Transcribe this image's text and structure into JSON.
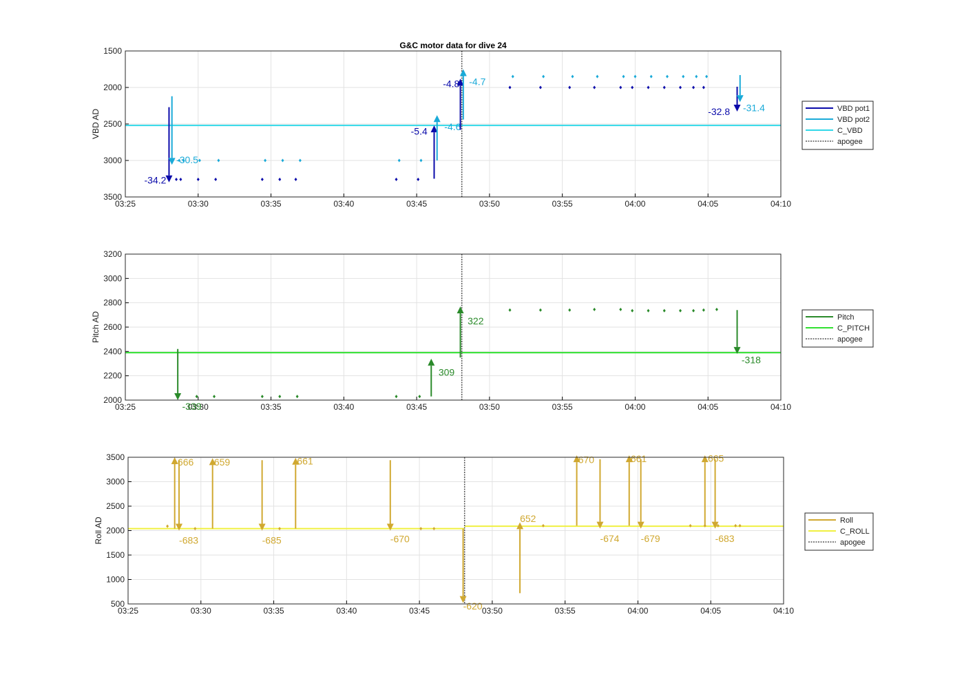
{
  "title": "G&C motor data for dive 24",
  "colors": {
    "vbd_pot1": "#0a0aaa",
    "vbd_pot2": "#1aaad8",
    "c_vbd": "#30d8e8",
    "pitch": "#2a8a2a",
    "c_pitch": "#30e030",
    "roll": "#d0a830",
    "c_roll": "#f0f040",
    "apogee": "#555555",
    "grid": "#e2e2e2"
  },
  "x_ticks": [
    "03:25",
    "03:30",
    "03:35",
    "03:40",
    "03:45",
    "03:50",
    "03:55",
    "04:00",
    "04:05",
    "04:10"
  ],
  "chart_data": [
    {
      "type": "line",
      "ylabel": "VBD AD",
      "xlim": [
        0,
        45
      ],
      "ylim": [
        3500,
        1500
      ],
      "y_reversed": true,
      "yticks": [
        1500,
        2000,
        2500,
        3000,
        3500
      ],
      "legend": [
        "VBD pot1",
        "VBD pot2",
        "C_VBD",
        "apogee"
      ],
      "hlines": [
        {
          "y": 2520,
          "color_key": "c_vbd"
        }
      ],
      "apogee_x": 23.1,
      "series": [
        {
          "name": "VBD pot1",
          "color_key": "vbd_pot1",
          "x": [
            3.5,
            3.8,
            5.0,
            6.2,
            9.4,
            10.6,
            11.7,
            18.6,
            20.1,
            26.4,
            28.5,
            30.5,
            32.2,
            34.0,
            34.8,
            35.9,
            37.0,
            38.1,
            39.0,
            39.7
          ],
          "y": [
            3260,
            3260,
            3260,
            3260,
            3260,
            3260,
            3260,
            3260,
            3260,
            2000,
            2000,
            2000,
            2000,
            2000,
            2000,
            2000,
            2000,
            2000,
            2000,
            2000
          ]
        },
        {
          "name": "VBD pot2",
          "color_key": "vbd_pot2",
          "x": [
            3.7,
            4.0,
            5.1,
            6.4,
            9.6,
            10.8,
            12.0,
            18.8,
            20.3,
            26.6,
            28.7,
            30.7,
            32.4,
            34.2,
            35.0,
            36.1,
            37.2,
            38.3,
            39.2,
            39.9
          ],
          "y": [
            3000,
            3000,
            3000,
            3000,
            3000,
            3000,
            3000,
            3000,
            3000,
            1850,
            1850,
            1850,
            1850,
            1850,
            1850,
            1850,
            1850,
            1850,
            1850,
            1850
          ]
        }
      ],
      "arrows": [
        {
          "x": 3.0,
          "from": 2270,
          "to": 3300,
          "label": "-34.2",
          "color_key": "vbd_pot1",
          "lx": 1.3,
          "ly": 3270
        },
        {
          "x": 3.2,
          "from": 2120,
          "to": 3060,
          "label": "-30.5",
          "color_key": "vbd_pot2",
          "lx": 3.5,
          "ly": 2990
        },
        {
          "x": 21.2,
          "from": 3250,
          "to": 2520,
          "label": "-5.4",
          "color_key": "vbd_pot1",
          "lx": 19.6,
          "ly": 2600
        },
        {
          "x": 21.4,
          "from": 3000,
          "to": 2380,
          "label": "-4.6",
          "color_key": "vbd_pot2",
          "lx": 21.9,
          "ly": 2540
        },
        {
          "x": 23.0,
          "from": 2580,
          "to": 1880,
          "label": "-4.8",
          "color_key": "vbd_pot1",
          "lx": 21.8,
          "ly": 1950
        },
        {
          "x": 23.2,
          "from": 2440,
          "to": 1750,
          "label": "-4.7",
          "color_key": "vbd_pot2",
          "lx": 23.6,
          "ly": 1920
        },
        {
          "x": 42.0,
          "from": 1990,
          "to": 2330,
          "label": "-32.8",
          "color_key": "vbd_pot1",
          "lx": 40.0,
          "ly": 2330
        },
        {
          "x": 42.2,
          "from": 1830,
          "to": 2200,
          "label": "-31.4",
          "color_key": "vbd_pot2",
          "lx": 42.4,
          "ly": 2280
        }
      ]
    },
    {
      "type": "line",
      "ylabel": "Pitch AD",
      "xlim": [
        0,
        45
      ],
      "ylim": [
        2000,
        3200
      ],
      "yticks": [
        2000,
        2200,
        2400,
        2600,
        2800,
        3000,
        3200
      ],
      "legend": [
        "Pitch",
        "C_PITCH",
        "apogee"
      ],
      "hlines": [
        {
          "y": 2390,
          "color_key": "c_pitch"
        }
      ],
      "apogee_x": 23.1,
      "series": [
        {
          "name": "Pitch",
          "color_key": "pitch",
          "x": [
            3.6,
            4.9,
            6.1,
            9.4,
            10.6,
            11.8,
            18.6,
            20.2,
            26.4,
            28.5,
            30.5,
            32.2,
            34.0,
            34.8,
            35.9,
            37.0,
            38.1,
            39.0,
            39.7,
            40.6
          ],
          "y": [
            2030,
            2030,
            2030,
            2030,
            2030,
            2030,
            2030,
            2030,
            2740,
            2740,
            2740,
            2745,
            2745,
            2735,
            2735,
            2735,
            2735,
            2735,
            2740,
            2745
          ]
        },
        {
          "name": "C_PITCH",
          "color_key": "c_pitch",
          "x": [],
          "y": []
        }
      ],
      "arrows": [
        {
          "x": 3.6,
          "from": 2420,
          "to": 2000,
          "label": "-339",
          "color_key": "pitch",
          "lx": 3.9,
          "ly": 1950
        },
        {
          "x": 21.0,
          "from": 2030,
          "to": 2340,
          "label": "309",
          "color_key": "pitch",
          "lx": 21.5,
          "ly": 2230
        },
        {
          "x": 23.0,
          "from": 2350,
          "to": 2770,
          "label": "322",
          "color_key": "pitch",
          "lx": 23.5,
          "ly": 2650
        },
        {
          "x": 42.0,
          "from": 2740,
          "to": 2380,
          "label": "-318",
          "color_key": "pitch",
          "lx": 42.3,
          "ly": 2330
        }
      ]
    },
    {
      "type": "line",
      "ylabel": "Roll AD",
      "xlim": [
        0,
        45
      ],
      "ylim": [
        500,
        3500
      ],
      "yticks": [
        500,
        1000,
        1500,
        2000,
        2500,
        3000,
        3500
      ],
      "legend": [
        "Roll",
        "C_ROLL",
        "apogee"
      ],
      "hlines": [
        {
          "x0": 0,
          "x1": 23.1,
          "y": 2040,
          "color_key": "c_roll"
        },
        {
          "x0": 23.1,
          "x1": 45,
          "y": 2090,
          "color_key": "c_roll"
        }
      ],
      "apogee_x": 23.1,
      "series": [
        {
          "name": "Roll",
          "color_key": "roll",
          "x": [
            2.7,
            4.6,
            10.4,
            20.1,
            21.0,
            28.5,
            38.6,
            39.6,
            40.5,
            41.7,
            42.0
          ],
          "y": [
            2090,
            2040,
            2040,
            2040,
            2040,
            2100,
            2100,
            2100,
            2100,
            2100,
            2100
          ]
        },
        {
          "name": "C_ROLL",
          "color_key": "c_roll",
          "x": [],
          "y": []
        }
      ],
      "arrows": [
        {
          "x": 3.2,
          "from": 2040,
          "to": 3500,
          "label": "666",
          "color_key": "roll",
          "lx": 3.4,
          "ly": 3400
        },
        {
          "x": 3.5,
          "from": 3440,
          "to": 2000,
          "label": "-683",
          "color_key": "roll",
          "lx": 3.5,
          "ly": 1800
        },
        {
          "x": 5.8,
          "from": 2040,
          "to": 3480,
          "label": "659",
          "color_key": "roll",
          "lx": 5.9,
          "ly": 3400
        },
        {
          "x": 9.2,
          "from": 3440,
          "to": 2000,
          "label": "-685",
          "color_key": "roll",
          "lx": 9.2,
          "ly": 1800
        },
        {
          "x": 11.5,
          "from": 2040,
          "to": 3490,
          "label": "661",
          "color_key": "roll",
          "lx": 11.6,
          "ly": 3420
        },
        {
          "x": 18.0,
          "from": 3440,
          "to": 2000,
          "label": "-670",
          "color_key": "roll",
          "lx": 18.0,
          "ly": 1830
        },
        {
          "x": 23.0,
          "from": 2040,
          "to": 520,
          "label": "-620",
          "color_key": "roll",
          "lx": 23.0,
          "ly": 460
        },
        {
          "x": 26.9,
          "from": 720,
          "to": 2170,
          "label": "652",
          "color_key": "roll",
          "lx": 26.9,
          "ly": 2250
        },
        {
          "x": 30.8,
          "from": 2100,
          "to": 3540,
          "label": "670",
          "color_key": "roll",
          "lx": 30.9,
          "ly": 3450
        },
        {
          "x": 32.4,
          "from": 3460,
          "to": 2040,
          "label": "-674",
          "color_key": "roll",
          "lx": 32.4,
          "ly": 1840
        },
        {
          "x": 34.4,
          "from": 2100,
          "to": 3540,
          "label": "661",
          "color_key": "roll",
          "lx": 34.5,
          "ly": 3470
        },
        {
          "x": 35.2,
          "from": 3460,
          "to": 2040,
          "label": "-679",
          "color_key": "roll",
          "lx": 35.2,
          "ly": 1840
        },
        {
          "x": 39.6,
          "from": 2100,
          "to": 3540,
          "label": "665",
          "color_key": "roll",
          "lx": 39.8,
          "ly": 3480
        },
        {
          "x": 40.3,
          "from": 3460,
          "to": 2040,
          "label": "-683",
          "color_key": "roll",
          "lx": 40.3,
          "ly": 1840
        }
      ]
    }
  ]
}
